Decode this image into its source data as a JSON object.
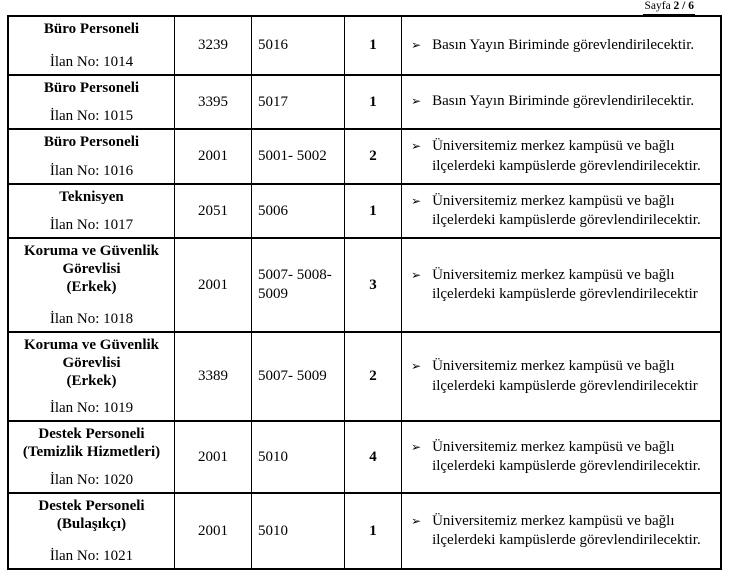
{
  "header": {
    "page_label": "Sayfa",
    "page_value": "2 / 6"
  },
  "table": {
    "bullet": "➢",
    "rows": [
      {
        "position": "Büro Personeli",
        "ilan": "İlan No: 1014",
        "kod1": "3239",
        "kod2": "5016",
        "adet": "1",
        "desc": "Basın Yayın Biriminde görevlendirilecektir."
      },
      {
        "position": "Büro Personeli",
        "ilan": "İlan No: 1015",
        "kod1": "3395",
        "kod2": "5017",
        "adet": "1",
        "desc": "Basın Yayın Biriminde görevlendirilecektir."
      },
      {
        "position": "Büro Personeli",
        "ilan": "İlan No: 1016",
        "kod1": "2001",
        "kod2": "5001- 5002",
        "adet": "2",
        "desc": "Üniversitemiz merkez kampüsü ve bağlı ilçelerdeki kampüslerde görevlendirilecektir."
      },
      {
        "position": "Teknisyen",
        "ilan": "İlan No: 1017",
        "kod1": "2051",
        "kod2": "5006",
        "adet": "1",
        "desc": "Üniversitemiz merkez kampüsü ve bağlı ilçelerdeki kampüslerde görevlendirilecektir."
      },
      {
        "position": "Koruma ve Güvenlik\nGörevlisi\n(Erkek)",
        "ilan": "İlan No: 1018",
        "kod1": "2001",
        "kod2": "5007- 5008-\n5009",
        "adet": "3",
        "desc": "Üniversitemiz merkez kampüsü ve bağlı ilçelerdeki kampüslerde görevlendirilecektir"
      },
      {
        "position": "Koruma ve Güvenlik\nGörevlisi\n(Erkek)",
        "ilan": "İlan No: 1019",
        "kod1": "3389",
        "kod2": "5007- 5009",
        "adet": "2",
        "desc": "Üniversitemiz merkez kampüsü ve bağlı ilçelerdeki kampüslerde görevlendirilecektir"
      },
      {
        "position": "Destek Personeli\n(Temizlik Hizmetleri)",
        "ilan": "İlan No: 1020",
        "kod1": "2001",
        "kod2": "5010",
        "adet": "4",
        "desc": "Üniversitemiz merkez kampüsü ve bağlı ilçelerdeki kampüslerde görevlendirilecektir."
      },
      {
        "position": "Destek Personeli\n(Bulaşıkçı)",
        "ilan": "İlan No: 1021",
        "kod1": "2001",
        "kod2": "5010",
        "adet": "1",
        "desc": "Üniversitemiz merkez kampüsü ve bağlı ilçelerdeki kampüslerde görevlendirilecektir."
      }
    ]
  }
}
